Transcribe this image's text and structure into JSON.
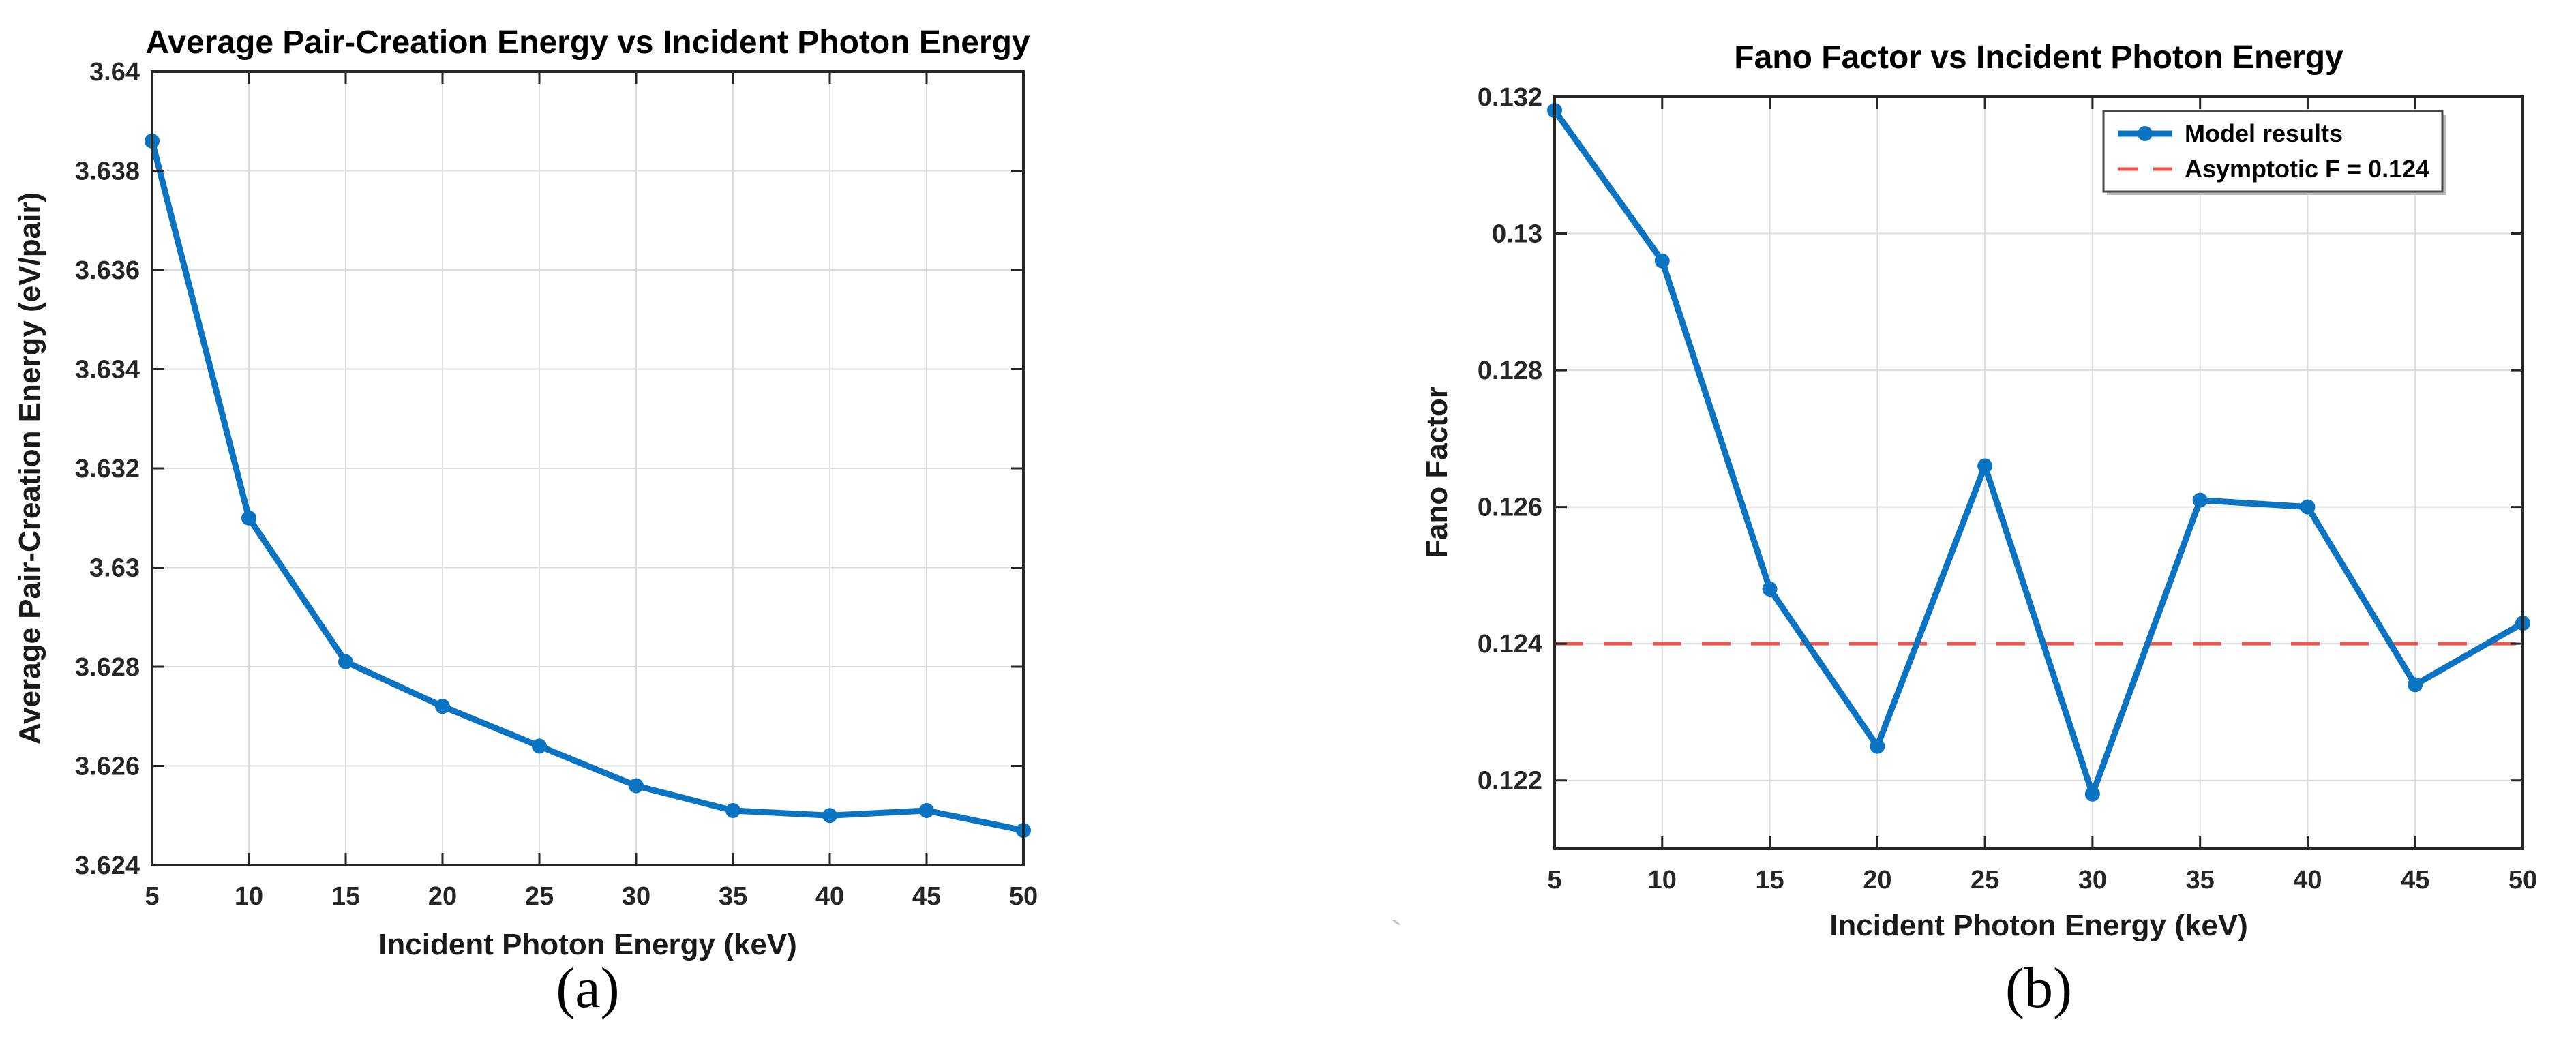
{
  "figure": {
    "background": "#ffffff",
    "stray_mark": "`"
  },
  "colors": {
    "series_blue": "#0b74c2",
    "asymptote_red": "#f2544e",
    "grid": "#dcdcdc",
    "axis": "#262626",
    "text": "#1a1a1a"
  },
  "charts": [
    {
      "id": "pair-creation-energy",
      "caption": "(a)",
      "chart_data": {
        "type": "line",
        "title": "Average Pair-Creation Energy vs Incident Photon Energy",
        "xlabel": "Incident Photon Energy (keV)",
        "ylabel": "Average Pair-Creation Energy (eV/pair)",
        "x": [
          5,
          10,
          15,
          20,
          25,
          30,
          35,
          40,
          45,
          50
        ],
        "series": [
          {
            "name": "Average pair-creation energy",
            "marker": "circle",
            "values": [
              3.6386,
              3.631,
              3.6281,
              3.6272,
              3.6264,
              3.6256,
              3.6251,
              3.625,
              3.6251,
              3.6247
            ]
          }
        ],
        "xlim": [
          5,
          50
        ],
        "ylim": [
          3.624,
          3.64
        ],
        "xticks": [
          5,
          10,
          15,
          20,
          25,
          30,
          35,
          40,
          45,
          50
        ],
        "yticks": [
          3.624,
          3.626,
          3.628,
          3.63,
          3.632,
          3.634,
          3.636,
          3.638,
          3.64
        ],
        "ytick_labels": [
          "3.624",
          "3.626",
          "3.628",
          "3.63",
          "3.632",
          "3.634",
          "3.636",
          "3.638",
          "3.64"
        ],
        "grid": true,
        "legend": null
      }
    },
    {
      "id": "fano-factor",
      "caption": "(b)",
      "chart_data": {
        "type": "line",
        "title": "Fano Factor vs Incident Photon Energy",
        "xlabel": "Incident Photon Energy (keV)",
        "ylabel": "Fano Factor",
        "x": [
          5,
          10,
          15,
          20,
          25,
          30,
          35,
          40,
          45,
          50
        ],
        "series": [
          {
            "name": "Model results",
            "marker": "circle",
            "values": [
              0.1318,
              0.1296,
              0.1248,
              0.1225,
              0.1266,
              0.1218,
              0.1261,
              0.126,
              0.1234,
              0.1243
            ]
          }
        ],
        "asymptote": {
          "value": 0.124,
          "label": "Asymptotic F = 0.124",
          "style": "dashed"
        },
        "xlim": [
          5,
          50
        ],
        "ylim": [
          0.121,
          0.132
        ],
        "xticks": [
          5,
          10,
          15,
          20,
          25,
          30,
          35,
          40,
          45,
          50
        ],
        "yticks": [
          0.122,
          0.124,
          0.126,
          0.128,
          0.13,
          0.132
        ],
        "ytick_labels": [
          "0.122",
          "0.124",
          "0.126",
          "0.128",
          "0.13",
          "0.132"
        ],
        "grid": true,
        "legend": {
          "position": "top-right",
          "entries": [
            {
              "label": "Model results",
              "swatch": "line-marker"
            },
            {
              "label": "Asymptotic F = 0.124",
              "swatch": "dashed-line"
            }
          ]
        }
      }
    }
  ]
}
